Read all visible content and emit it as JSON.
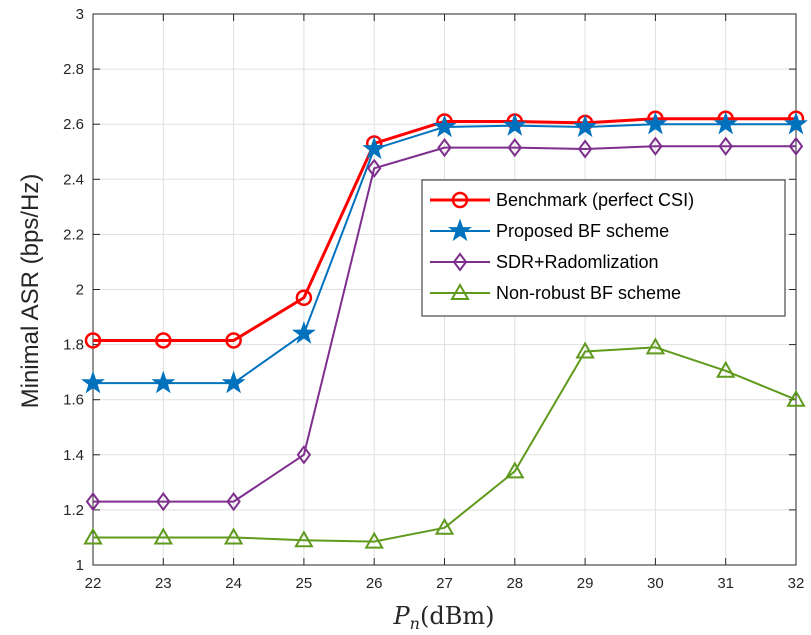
{
  "chart_data": {
    "type": "line",
    "title": "",
    "xlabel": "P_n(dBm)",
    "xlabel_parts": {
      "symbol": "P",
      "subscript": "n",
      "unit": "(dBm)"
    },
    "ylabel": "Minimal ASR (bps/Hz)",
    "xlim": [
      22,
      32
    ],
    "ylim": [
      1,
      3
    ],
    "x": [
      22,
      23,
      24,
      25,
      26,
      27,
      28,
      29,
      30,
      31,
      32
    ],
    "x_ticks": [
      "22",
      "23",
      "24",
      "25",
      "26",
      "27",
      "28",
      "29",
      "30",
      "31",
      "32"
    ],
    "y_ticks": [
      "1",
      "1.2",
      "1.4",
      "1.6",
      "1.8",
      "2",
      "2.2",
      "2.4",
      "2.6",
      "2.8",
      "3"
    ],
    "grid": true,
    "legend_position": "right",
    "series": [
      {
        "name": "Benchmark (perfect CSI)",
        "color": "#ff0000",
        "marker": "circle",
        "values": [
          1.815,
          1.815,
          1.815,
          1.97,
          2.53,
          2.61,
          2.61,
          2.605,
          2.62,
          2.62,
          2.62
        ]
      },
      {
        "name": "Proposed BF scheme",
        "color": "#0072bd",
        "marker": "star",
        "values": [
          1.66,
          1.66,
          1.66,
          1.84,
          2.51,
          2.59,
          2.595,
          2.59,
          2.6,
          2.6,
          2.6
        ]
      },
      {
        "name": "SDR+Radomlization",
        "color": "#7e2f8e",
        "marker": "diamond",
        "values": [
          1.23,
          1.23,
          1.23,
          1.4,
          2.44,
          2.515,
          2.515,
          2.51,
          2.52,
          2.52,
          2.52
        ]
      },
      {
        "name": "Non-robust BF scheme",
        "color": "#5f9a1d",
        "marker": "triangle",
        "values": [
          1.1,
          1.1,
          1.1,
          1.09,
          1.085,
          1.135,
          1.34,
          1.775,
          1.79,
          1.705,
          1.6
        ]
      }
    ]
  }
}
